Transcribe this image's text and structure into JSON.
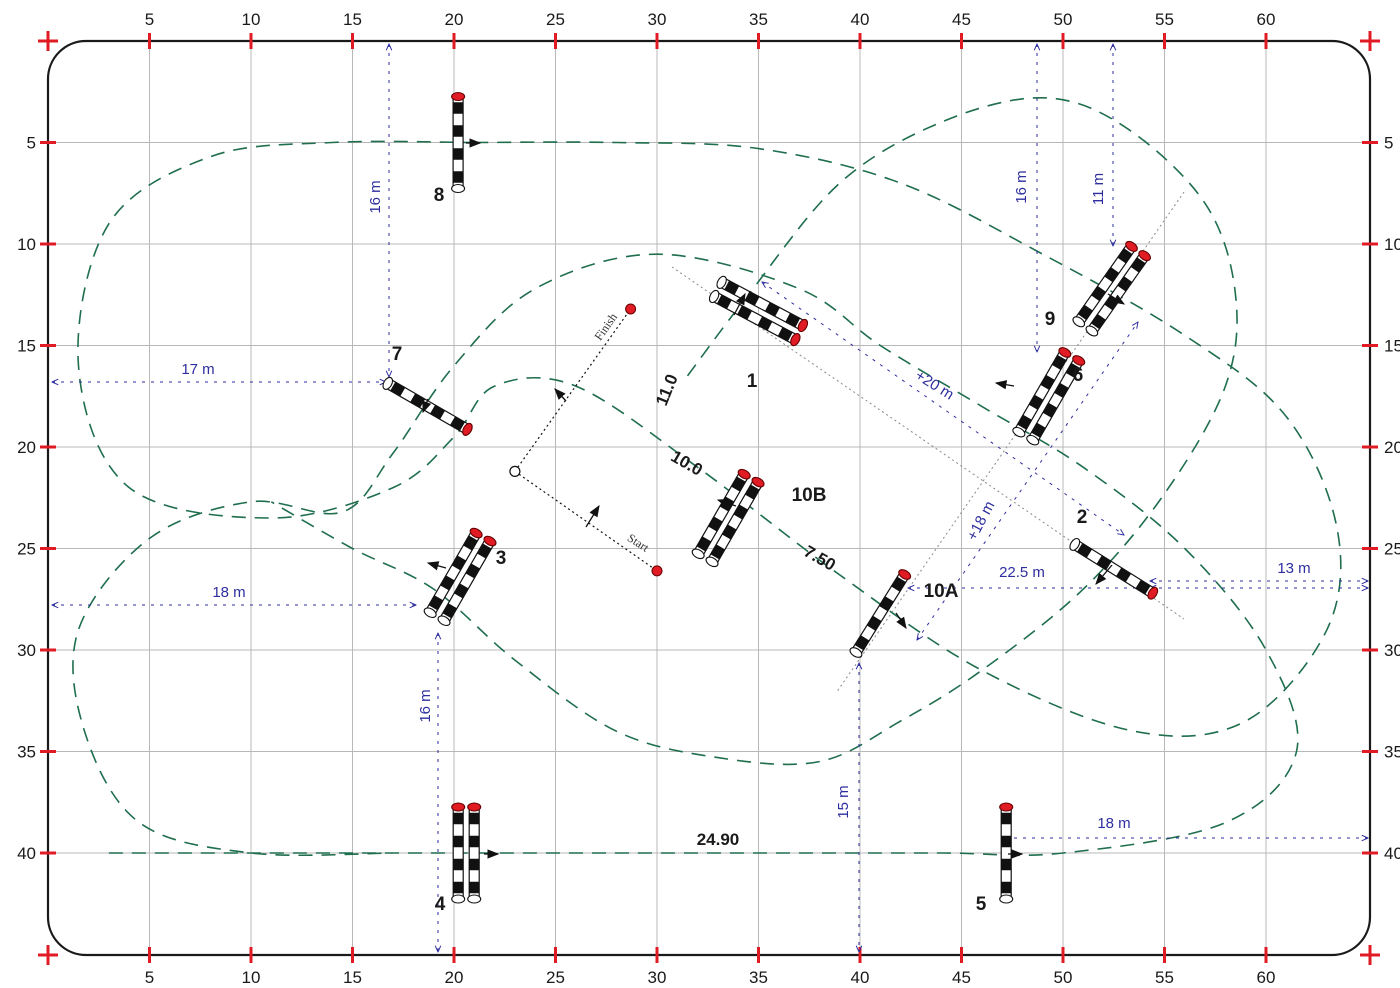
{
  "arena": {
    "width_m": 65,
    "height_m": 45
  },
  "axes": {
    "x_ticks": [
      5,
      10,
      15,
      20,
      25,
      30,
      35,
      40,
      45,
      50,
      55,
      60
    ],
    "y_ticks": [
      5,
      10,
      15,
      20,
      25,
      30,
      35,
      40
    ]
  },
  "colors": {
    "grid": "#b8b8b8",
    "border": "#1a1a1a",
    "track": "#1f6e4d",
    "dimension": "#2e2e9e",
    "marker": "#e01b24",
    "pole_dark": "#111111"
  },
  "track": {
    "paths": [
      [
        [
          21,
          5
        ],
        [
          28,
          5
        ],
        [
          35,
          5.3
        ],
        [
          42,
          7
        ],
        [
          49,
          10.5
        ],
        [
          56,
          14.5
        ],
        [
          61,
          18.5
        ],
        [
          63.5,
          24
        ],
        [
          63,
          29
        ],
        [
          59,
          33.5
        ],
        [
          53.5,
          34
        ],
        [
          46,
          31
        ],
        [
          39,
          26.3
        ],
        [
          32,
          21
        ],
        [
          26,
          17
        ],
        [
          22,
          17
        ],
        [
          20,
          19.5
        ],
        [
          17,
          22
        ],
        [
          11,
          23.5
        ],
        [
          4,
          22
        ],
        [
          1.5,
          16
        ],
        [
          3,
          9
        ],
        [
          8,
          5.7
        ],
        [
          14,
          5
        ],
        [
          21,
          5
        ]
      ],
      [
        [
          3,
          40
        ],
        [
          20,
          40
        ],
        [
          35,
          40
        ],
        [
          44,
          40
        ],
        [
          50,
          40
        ],
        [
          58,
          38.5
        ],
        [
          61.5,
          35
        ],
        [
          60,
          30
        ],
        [
          56,
          25
        ],
        [
          51,
          21
        ],
        [
          46,
          18
        ],
        [
          41,
          15
        ],
        [
          37,
          12.2
        ],
        [
          30,
          10.5
        ],
        [
          24,
          12.2
        ],
        [
          20,
          16
        ],
        [
          17,
          20.3
        ],
        [
          14.5,
          23.2
        ],
        [
          10,
          22.7
        ],
        [
          5,
          24.5
        ],
        [
          1.5,
          29
        ],
        [
          1.8,
          34
        ],
        [
          4.5,
          38.5
        ],
        [
          10,
          40
        ],
        [
          17,
          40
        ]
      ],
      [
        [
          31.5,
          16.5
        ],
        [
          34.5,
          12.5
        ],
        [
          39,
          7
        ],
        [
          44,
          4
        ],
        [
          49,
          2.8
        ],
        [
          53,
          4.2
        ],
        [
          57,
          8
        ],
        [
          58.5,
          12.5
        ],
        [
          58,
          17
        ],
        [
          55,
          22.3
        ],
        [
          51,
          27
        ],
        [
          46,
          31
        ],
        [
          42,
          33.5
        ],
        [
          38,
          35.5
        ],
        [
          33,
          35.3
        ],
        [
          28,
          34
        ],
        [
          23,
          30.5
        ],
        [
          19,
          27
        ],
        [
          15,
          25
        ],
        [
          11,
          22.7
        ]
      ]
    ]
  },
  "obstacles": [
    {
      "id": "1",
      "label": "1",
      "center": [
        35,
        13.3
      ],
      "angle": 28,
      "kind": "double"
    },
    {
      "id": "2",
      "label": "2",
      "center": [
        52.5,
        26
      ],
      "angle": 32,
      "kind": "single"
    },
    {
      "id": "3",
      "label": "3",
      "center": [
        20.3,
        26.4
      ],
      "angle": -60,
      "kind": "double"
    },
    {
      "id": "4",
      "label": "4",
      "center": [
        20.6,
        40
      ],
      "angle": -90,
      "kind": "double"
    },
    {
      "id": "5",
      "label": "5",
      "center": [
        47.2,
        40
      ],
      "angle": -90,
      "kind": "single"
    },
    {
      "id": "6",
      "label": "6",
      "center": [
        49.3,
        17.5
      ],
      "angle": -60,
      "kind": "double"
    },
    {
      "id": "7",
      "label": "7",
      "center": [
        18.7,
        18
      ],
      "angle": 30,
      "kind": "single"
    },
    {
      "id": "8",
      "label": "8",
      "center": [
        20.2,
        5
      ],
      "angle": -90,
      "kind": "single"
    },
    {
      "id": "9",
      "label": "9",
      "center": [
        52.4,
        12.2
      ],
      "angle": -55,
      "kind": "double"
    },
    {
      "id": "10A",
      "label": "10A",
      "center": [
        41,
        28.2
      ],
      "angle": -58,
      "kind": "single"
    },
    {
      "id": "10B",
      "label": "10B",
      "center": [
        33.5,
        23.5
      ],
      "angle": -60,
      "kind": "double"
    }
  ],
  "start_finish": {
    "corner": [
      23,
      21.2
    ],
    "start_point": [
      30,
      26.1
    ],
    "finish_point": [
      28.7,
      13.2
    ],
    "start_label": "Start",
    "finish_label": "Finish"
  },
  "distances": [
    {
      "id": "d-11",
      "text": "11.0"
    },
    {
      "id": "d-10",
      "text": "10.0"
    },
    {
      "id": "d-750",
      "text": "7.50"
    },
    {
      "id": "d-2490",
      "text": "24.90"
    }
  ],
  "dimensions": [
    {
      "id": "dim-16m-a",
      "text": "16 m"
    },
    {
      "id": "dim-17m",
      "text": "17 m"
    },
    {
      "id": "dim-18m-a",
      "text": "18 m"
    },
    {
      "id": "dim-16m-b",
      "text": "16 m"
    },
    {
      "id": "dim-15m",
      "text": "15 m"
    },
    {
      "id": "dim-16m-c",
      "text": "16 m"
    },
    {
      "id": "dim-11m",
      "text": "11 m"
    },
    {
      "id": "dim-20m",
      "text": "+20 m"
    },
    {
      "id": "dim-18m-diag",
      "text": "+18 m"
    },
    {
      "id": "dim-225m",
      "text": "22.5 m"
    },
    {
      "id": "dim-13m",
      "text": "13 m"
    },
    {
      "id": "dim-18m-b",
      "text": "18 m"
    }
  ]
}
